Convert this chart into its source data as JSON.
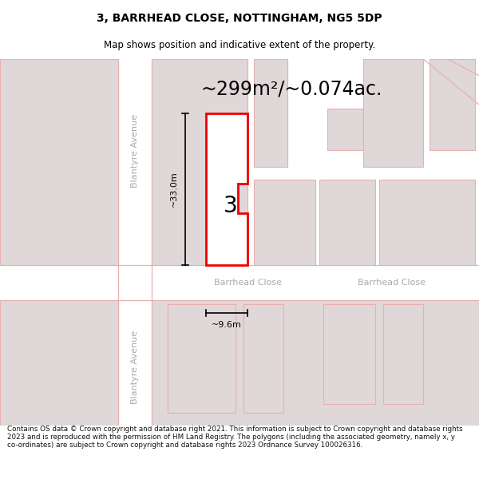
{
  "title": "3, BARRHEAD CLOSE, NOTTINGHAM, NG5 5DP",
  "subtitle": "Map shows position and indicative extent of the property.",
  "area_text": "~299m²/~0.074ac.",
  "dim_width": "~9.6m",
  "dim_height": "~33.0m",
  "property_number": "3",
  "street_label_left": "Barrhead Close",
  "street_label_right": "Barrhead Close",
  "street_vertical_upper": "Blantyre Avenue",
  "street_vertical_lower": "Blantyre Avenue",
  "footer_text": "Contains OS data © Crown copyright and database right 2021. This information is subject to Crown copyright and database rights 2023 and is reproduced with the permission of HM Land Registry. The polygons (including the associated geometry, namely x, y co-ordinates) are subject to Crown copyright and database rights 2023 Ordnance Survey 100026316.",
  "bg_color": "#ffffff",
  "map_bg": "#f2eded",
  "road_color": "#ffffff",
  "block_fill": "#e0d8d8",
  "block_edge": "#e8b0b0",
  "road_edge": "#e8b0b0",
  "highlight_color": "#ee0000",
  "prop_fill": "#ffffff",
  "street_text_color": "#b0a8a8",
  "title_fontsize": 10,
  "subtitle_fontsize": 8.5,
  "area_fontsize": 17,
  "street_fontsize": 8,
  "dim_fontsize": 8,
  "prop_label_fontsize": 20
}
